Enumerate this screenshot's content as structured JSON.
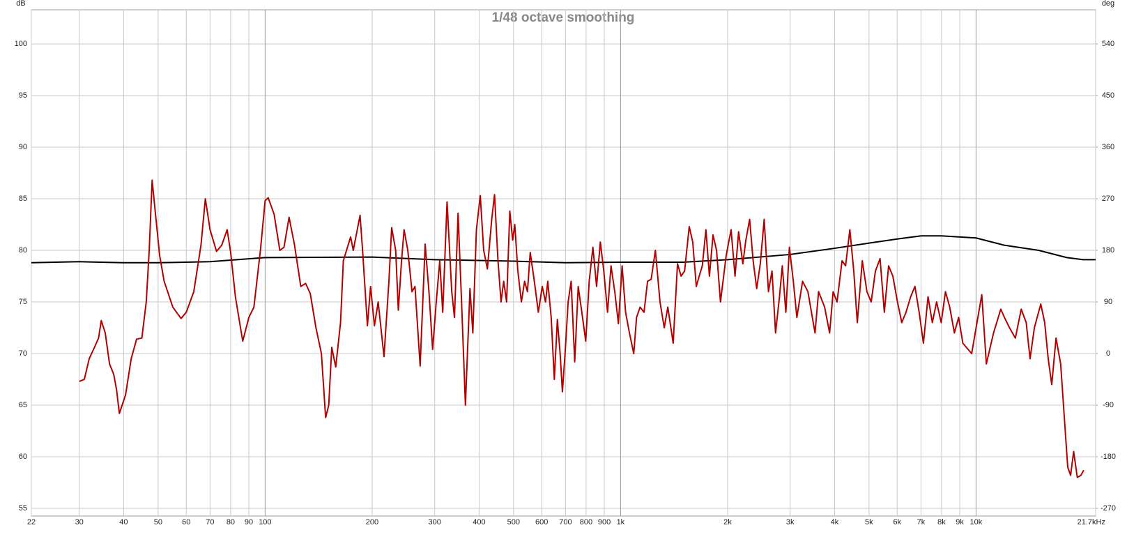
{
  "chart_data": {
    "type": "line",
    "title": "1/48 octave smoothing",
    "y_label": "dB",
    "y2_label": "deg",
    "xscale": "log",
    "grid": true,
    "xlim": [
      22,
      21700
    ],
    "xticks": [
      22,
      30,
      40,
      50,
      60,
      70,
      80,
      90,
      100,
      200,
      300,
      400,
      500,
      600,
      700,
      800,
      900,
      {
        "value": 1000,
        "label": "1k"
      },
      {
        "value": 2000,
        "label": "2k"
      },
      {
        "value": 3000,
        "label": "3k"
      },
      {
        "value": 4000,
        "label": "4k"
      },
      {
        "value": 5000,
        "label": "5k"
      },
      {
        "value": 6000,
        "label": "6k"
      },
      {
        "value": 7000,
        "label": "7k"
      },
      {
        "value": 8000,
        "label": "8k"
      },
      {
        "value": 9000,
        "label": "9k"
      },
      {
        "value": 10000,
        "label": "10k"
      },
      {
        "value": 21700,
        "label": "21.7kHz"
      }
    ],
    "ylim": [
      54.26,
      103.31
    ],
    "yticks": [
      55,
      60,
      65,
      70,
      75,
      80,
      85,
      90,
      95,
      100
    ],
    "y2lim": [
      -283.3,
      599.6
    ],
    "y2ticks": [
      -270,
      -180,
      -90,
      0,
      90,
      180,
      270,
      360,
      450,
      540
    ],
    "series": [
      {
        "color": "#b00000",
        "x": [
          30,
          31,
          32,
          33,
          34,
          34.6,
          35.5,
          36.5,
          37.5,
          38.2,
          38.9,
          40.5,
          42,
          43.5,
          45,
          46.3,
          47.2,
          48.1,
          49,
          50.5,
          52,
          55,
          58,
          60,
          63,
          66,
          67.9,
          70,
          73,
          75.5,
          78.2,
          80,
          82.5,
          86.5,
          90,
          93,
          97,
          100,
          102,
          106,
          110,
          113,
          116.8,
          121,
          126,
          130,
          134,
          139,
          144,
          148,
          151,
          154,
          158,
          163,
          166,
          174,
          177,
          185,
          188,
          194,
          198,
          203,
          208,
          216,
          223,
          227,
          233,
          237,
          242,
          246,
          252,
          259,
          264,
          273,
          282,
          289,
          296,
          303,
          310,
          316,
          325,
          335,
          341,
          349,
          357,
          366,
          377,
          384,
          393,
          403,
          412,
          422,
          434,
          442,
          452,
          461,
          469,
          478,
          488,
          497,
          504,
          514,
          526,
          537,
          547,
          557,
          573,
          587,
          602,
          615,
          624,
          638,
          651,
          664,
          676,
          686,
          698,
          712,
          726,
          743,
          760,
          778,
          798,
          816,
          836,
          856,
          877,
          897,
          919,
          940,
          963,
          986,
          1010,
          1033,
          1059,
          1089,
          1109,
          1135,
          1164,
          1191,
          1219,
          1253,
          1291,
          1327,
          1358,
          1406,
          1446,
          1480,
          1514,
          1560,
          1596,
          1633,
          1664,
          1698,
          1738,
          1778,
          1820,
          1862,
          1910,
          1982,
          2046,
          2099,
          2148,
          2208,
          2249,
          2307,
          2360,
          2415,
          2472,
          2535,
          2606,
          2667,
          2729,
          2799,
          2851,
          2917,
          2985,
          3062,
          3133,
          3251,
          3365,
          3443,
          3524,
          3606,
          3750,
          3873,
          3963,
          4064,
          4198,
          4295,
          4416,
          4529,
          4634,
          4786,
          4932,
          5070,
          5212,
          5370,
          5521,
          5675,
          5834,
          6012,
          6180,
          6353,
          6546,
          6730,
          6918,
          7112,
          7328,
          7534,
          7745,
          7980,
          8204,
          8433,
          8690,
          8933,
          9183,
          9720,
          10380,
          10690,
          11200,
          11740,
          12020,
          12420,
          12900,
          13400,
          13840,
          14190,
          14590,
          15210,
          15600,
          15960,
          16330,
          16790,
          17300,
          17700,
          18110,
          18450,
          18820,
          19270,
          19720,
          20090
        ],
        "values": [
          67.3,
          67.5,
          69.5,
          70.5,
          71.5,
          73.2,
          72,
          69,
          68,
          66.5,
          64.2,
          66,
          69.5,
          71.4,
          71.5,
          75,
          80,
          86.8,
          84,
          79.5,
          77,
          74.5,
          73.4,
          74,
          76,
          80.5,
          85,
          82,
          79.9,
          80.5,
          82,
          79.8,
          75.5,
          71.2,
          73.5,
          74.5,
          80,
          84.8,
          85.1,
          83.5,
          80,
          80.3,
          83.2,
          80.5,
          76.5,
          76.8,
          75.8,
          72.5,
          70,
          63.8,
          65,
          70.6,
          68.7,
          73,
          79,
          81.3,
          80,
          83.4,
          80,
          72.7,
          76.5,
          72.7,
          75,
          69.7,
          77,
          82.2,
          80,
          74.2,
          79,
          82,
          80,
          76,
          76.5,
          68.8,
          80.6,
          76,
          70.4,
          75,
          79,
          74,
          84.7,
          76,
          73.5,
          83.6,
          75,
          65,
          76.3,
          72,
          82,
          85.3,
          80,
          78.2,
          83,
          85.4,
          79,
          75,
          77,
          75,
          83.8,
          81,
          82.5,
          78,
          75,
          77,
          76,
          79.8,
          76.8,
          74,
          76.5,
          75,
          77,
          73.5,
          67.5,
          73.3,
          70,
          66.3,
          70,
          75,
          77,
          69.2,
          76.5,
          74,
          71.2,
          77,
          80.3,
          76.5,
          80.8,
          78,
          74,
          78.5,
          76,
          72.9,
          78.5,
          74,
          72,
          70,
          73.5,
          74.5,
          74,
          77,
          77.2,
          80,
          75,
          72.5,
          74.5,
          71,
          78.7,
          77.5,
          78,
          82.3,
          80.8,
          76.5,
          77.5,
          78.5,
          82,
          77.5,
          81.5,
          80,
          75,
          79.5,
          82,
          77.5,
          81.8,
          78.7,
          80.9,
          83,
          79,
          76.3,
          78.7,
          83,
          76,
          78,
          72,
          75.5,
          78.5,
          74,
          80.3,
          77,
          73.5,
          77,
          76,
          74,
          72,
          76,
          74.5,
          72,
          76,
          75,
          79,
          78.5,
          82,
          78,
          73,
          79,
          76,
          75,
          78,
          79.2,
          74,
          78.5,
          77.5,
          75,
          73,
          74,
          75.5,
          76.5,
          74,
          71,
          75.5,
          73,
          75,
          73,
          76,
          74.5,
          72,
          73.5,
          71,
          70,
          75.7,
          69,
          72,
          74.3,
          73.5,
          72.5,
          71.5,
          74.3,
          73,
          69.5,
          72.5,
          74.8,
          73,
          69.5,
          67,
          71.5,
          69,
          64,
          59,
          58.2,
          60.5,
          58,
          58.2,
          58.7
        ]
      },
      {
        "color": "#000000",
        "x": [
          22,
          30,
          40,
          50,
          70,
          100,
          200,
          300,
          500,
          700,
          1000,
          1500,
          2000,
          3000,
          4000,
          5000,
          6000,
          7000,
          8000,
          10000,
          12000,
          15000,
          18000,
          20000,
          21700
        ],
        "values": [
          78.8,
          78.9,
          78.8,
          78.8,
          78.9,
          79.3,
          79.35,
          79.1,
          78.95,
          78.8,
          78.85,
          78.85,
          79.1,
          79.6,
          80.2,
          80.7,
          81.1,
          81.4,
          81.4,
          81.2,
          80.5,
          80,
          79.3,
          79.1,
          79.1
        ]
      }
    ]
  }
}
